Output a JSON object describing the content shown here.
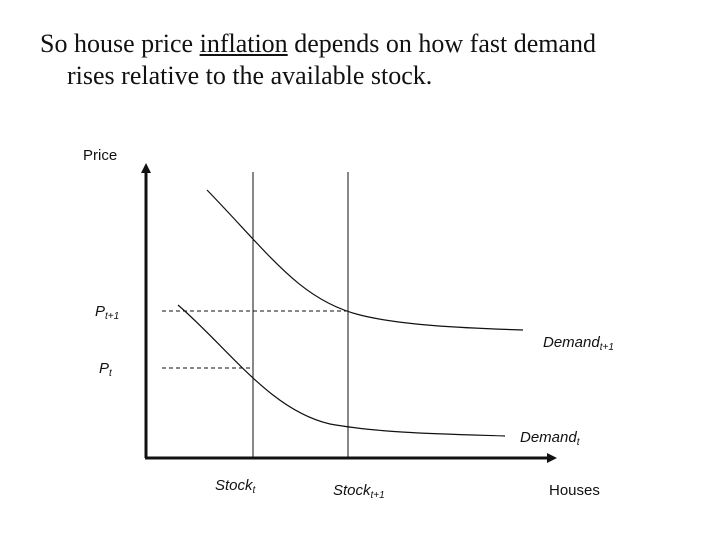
{
  "title": {
    "part1": "So house price ",
    "underlined": "inflation",
    "part2": " depends on how fast demand",
    "line2": "rises relative to the available stock."
  },
  "diagram": {
    "y_axis_label": "Price",
    "x_axis_label": "Houses",
    "p_t1": {
      "base": "P",
      "sub": "t+1"
    },
    "p_t": {
      "base": "P",
      "sub": "t"
    },
    "demand_t1": {
      "base": "Demand",
      "sub": "t+1"
    },
    "demand_t": {
      "base": "Demand",
      "sub": "t"
    },
    "stock_t": {
      "base": "Stock",
      "sub": "t"
    },
    "stock_t1": {
      "base": "Stock",
      "sub": "t+1"
    }
  },
  "colors": {
    "ink": "#111111",
    "background": "#ffffff"
  }
}
